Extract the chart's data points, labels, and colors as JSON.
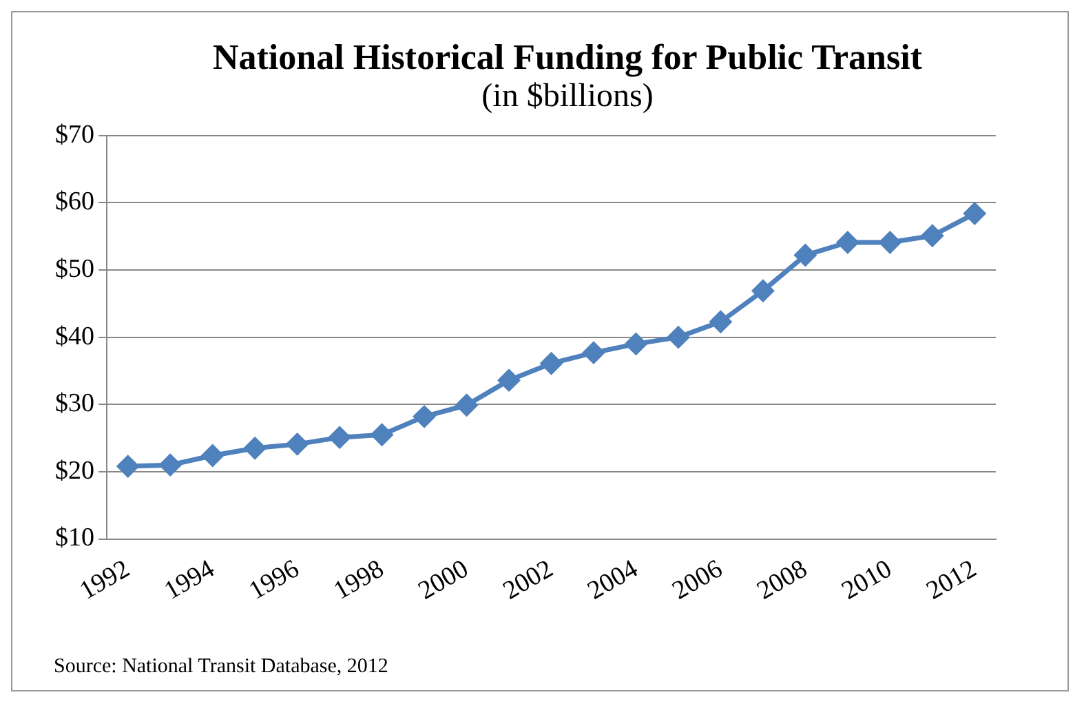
{
  "chart_data": {
    "type": "line",
    "title": "National Historical Funding  for Public Transit",
    "subtitle": "(in $billions)",
    "categories": [
      "1992",
      null,
      "1994",
      null,
      "1996",
      null,
      "1998",
      null,
      "2000",
      null,
      "2002",
      null,
      "2004",
      null,
      "2006",
      null,
      "2008",
      null,
      "2010",
      null,
      "2012"
    ],
    "series": [
      {
        "color": "#4f81bd",
        "values": [
          20.8,
          21,
          22.4,
          23.5,
          24.1,
          25.1,
          25.5,
          28.2,
          29.9,
          33.6,
          36.1,
          37.7,
          39,
          40,
          42.3,
          46.9,
          52.2,
          54.1,
          54.1,
          55.1,
          58.4
        ]
      }
    ],
    "ylim": [
      10,
      70
    ],
    "yticks": [
      {
        "value": 10,
        "label": "$10"
      },
      {
        "value": 20,
        "label": "$20"
      },
      {
        "value": 30,
        "label": "$30"
      },
      {
        "value": 40,
        "label": "$40"
      },
      {
        "value": 50,
        "label": "$50"
      },
      {
        "value": 60,
        "label": "$60"
      },
      {
        "value": 70,
        "label": "$70"
      }
    ],
    "grid": "y",
    "legend": false,
    "marker": "diamond",
    "line_style": "solid",
    "annotations": [
      "Source: National Transit Database, 2012"
    ]
  }
}
